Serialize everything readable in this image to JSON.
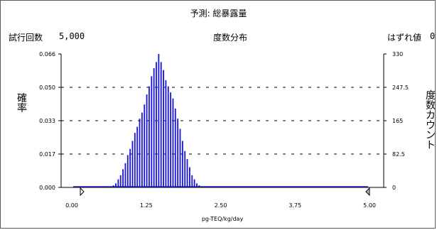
{
  "header": {
    "title": "予測: 総暴露量",
    "trials_label": "試行回数",
    "trials_value": "5,000",
    "subtitle": "度数分布",
    "outliers_label": "はずれ値",
    "outliers_value": "0"
  },
  "colors": {
    "bars": "#1a1ad6",
    "gridline": "#000000",
    "frame": "#5a5a5a"
  },
  "chart_data": {
    "type": "bar",
    "title": "度数分布",
    "xlabel": "pg-TEQ/kg/day",
    "ylabel_left": "確率",
    "ylabel_right": "度数カウント",
    "xlim": [
      0.0,
      5.0
    ],
    "ylim_left": [
      0.0,
      0.066
    ],
    "ylim_right": [
      0,
      330
    ],
    "x_ticks": [
      "0.00",
      "1.25",
      "2.50",
      "3.75",
      "5.00"
    ],
    "y_left_ticks": [
      "0.000",
      "0.017",
      "0.033",
      "0.050",
      "0.066"
    ],
    "y_right_ticks": [
      "0",
      "82.5",
      "165",
      "247.5",
      "330"
    ],
    "grid": "horizontal dashed",
    "series": [
      {
        "x": [
          0.7,
          0.74,
          0.78,
          0.82,
          0.86,
          0.9,
          0.94,
          0.98,
          1.02,
          1.06,
          1.1,
          1.14,
          1.18,
          1.22,
          1.26,
          1.3,
          1.34,
          1.38,
          1.42,
          1.46,
          1.5,
          1.54,
          1.58,
          1.62,
          1.66,
          1.7,
          1.74,
          1.78,
          1.82,
          1.86,
          1.9,
          1.94,
          1.98,
          2.02,
          2.06,
          2.1,
          2.14
        ],
        "values": [
          0.001,
          0.002,
          0.004,
          0.006,
          0.009,
          0.012,
          0.016,
          0.019,
          0.023,
          0.027,
          0.03,
          0.034,
          0.037,
          0.041,
          0.046,
          0.05,
          0.055,
          0.059,
          0.062,
          0.066,
          0.062,
          0.058,
          0.053,
          0.05,
          0.047,
          0.044,
          0.039,
          0.034,
          0.029,
          0.023,
          0.018,
          0.014,
          0.01,
          0.006,
          0.004,
          0.002,
          0.001
        ]
      }
    ]
  }
}
